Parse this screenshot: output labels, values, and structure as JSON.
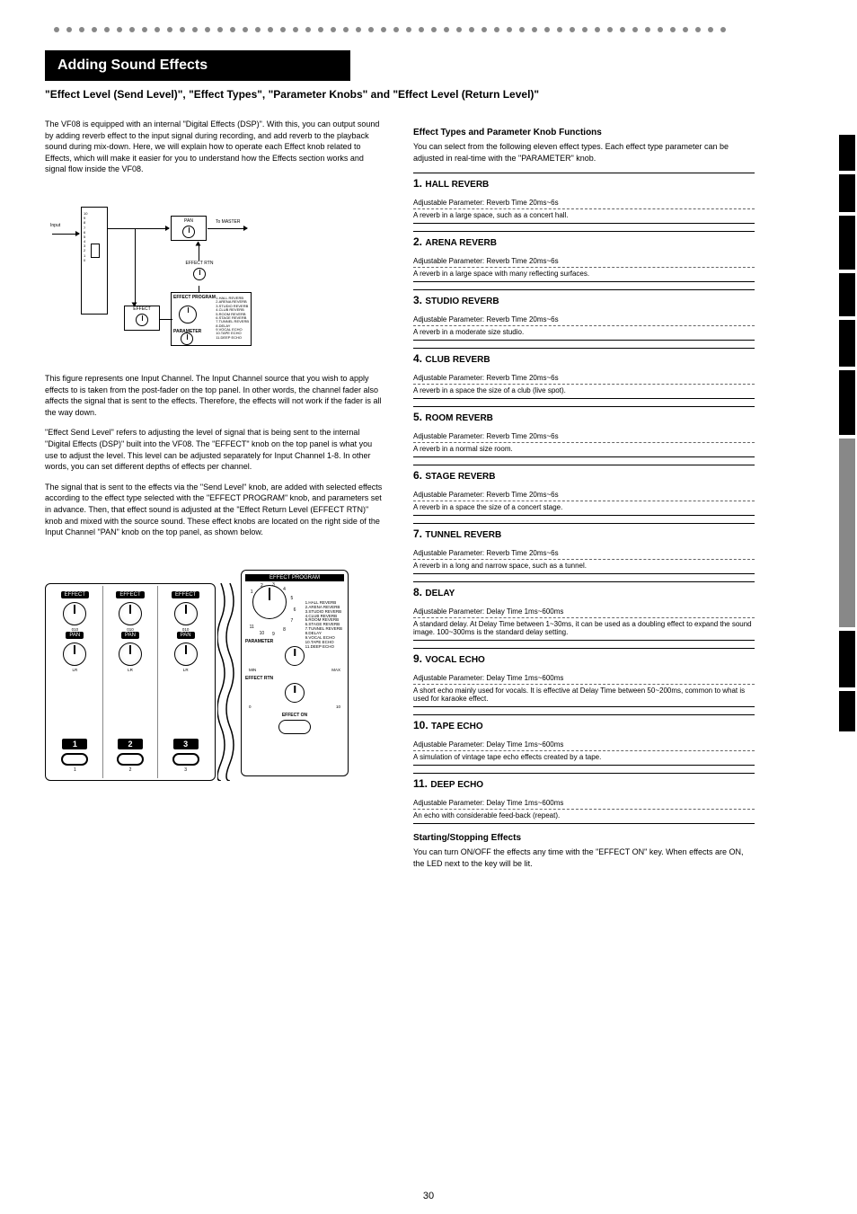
{
  "page_number": "30",
  "title": "Adding Sound Effects",
  "subtitle": "\"Effect Level (Send Level)\", \"Effect Types\", \"Parameter Knobs\" and \"Effect Level (Return Level)\"",
  "intro_para": "The VF08 is equipped with an internal \"Digital Effects (DSP)\". With this, you can output sound by adding reverb effect to the input signal during recording, and add reverb to the playback sound during mix-down. Here, we will explain how to operate each Effect knob related to Effects, which will make it easier for you to understand how the Effects section works and signal flow inside the VF08.",
  "diagram1": {
    "input_label": "Input",
    "pan_label": "PAN",
    "effect_label": "EFFECT",
    "effect_rtn_label": "EFFECT RTN",
    "effect_program_label": "EFFECT PROGRAM",
    "parameter_label": "PARAMETER",
    "master_label": "MASTER",
    "to_master_label": "To MASTER",
    "fader_marks": [
      "10",
      "9",
      "8",
      "7",
      "6",
      "5",
      "4",
      "3",
      "2",
      "1",
      "0"
    ],
    "effect_programs": [
      "HALL REVERB",
      "ARENA REVERB",
      "STUDIO REVERB",
      "CLUB REVERB",
      "ROOM REVERB",
      "STAGE REVERB",
      "TUNNEL REVERB",
      "DELAY",
      "VOCAL ECHO",
      "TAPE ECHO",
      "DEEP ECHO"
    ]
  },
  "left_text": {
    "p1": "This figure represents one Input Channel. The Input Channel source that you wish to apply effects to is taken from the post-fader on the top panel. In other words, the channel fader also affects the signal that is sent to the effects. Therefore, the effects will not work if the fader is all the way down.",
    "p2": "\"Effect Send Level\" refers to adjusting the level of signal that is being sent to the internal \"Digital Effects (DSP)\" built into the VF08. The \"EFFECT\" knob on the top panel is what you use to adjust the level. This level can be adjusted separately for Input Channel 1-8. In other words, you can set different depths of effects per channel.",
    "p3": "The signal that is sent to the effects via the \"Send Level\" knob, are added with selected effects according to the effect type selected with the \"EFFECT PROGRAM\" knob, and parameters set in advance. Then, that effect sound is adjusted at the \"Effect Return Level (EFFECT RTN)\" knob and mixed with the source sound. These effect knobs are located on the right side of the Input Channel \"PAN\" knob on the top panel, as shown below."
  },
  "right_text": {
    "head1": "Effect Types and Parameter Knob Functions",
    "lead": "You can select from the following eleven effect types. Each effect type parameter can be adjusted in real-time with the \"PARAMETER\" knob.",
    "effects": [
      {
        "num": "1.",
        "name": "HALL REVERB",
        "param": "Adjustable Parameter: Reverb Time 20ms~6s",
        "desc": "A reverb in a large space, such as a concert hall."
      },
      {
        "num": "2.",
        "name": "ARENA REVERB",
        "param": "Adjustable Parameter: Reverb Time 20ms~6s",
        "desc": "A reverb in a large space with many reflecting surfaces."
      },
      {
        "num": "3.",
        "name": "STUDIO REVERB",
        "param": "Adjustable Parameter: Reverb Time 20ms~6s",
        "desc": "A reverb in a moderate size studio."
      },
      {
        "num": "4.",
        "name": "CLUB REVERB",
        "param": "Adjustable Parameter: Reverb Time 20ms~6s",
        "desc": "A reverb in a space the size of a club (live spot)."
      },
      {
        "num": "5.",
        "name": "ROOM REVERB",
        "param": "Adjustable Parameter: Reverb Time 20ms~6s",
        "desc": "A reverb in a normal size room."
      },
      {
        "num": "6.",
        "name": "STAGE REVERB",
        "param": "Adjustable Parameter: Reverb Time 20ms~6s",
        "desc": "A reverb in a space the size of a concert stage."
      },
      {
        "num": "7.",
        "name": "TUNNEL REVERB",
        "param": "Adjustable Parameter: Reverb Time 20ms~6s",
        "desc": "A reverb in a long and narrow space, such as a tunnel."
      },
      {
        "num": "8.",
        "name": "DELAY",
        "param": "Adjustable Parameter: Delay Time 1ms~600ms",
        "desc": "A standard delay. At Delay Time between 1~30ms, it can be used as a doubling effect to expand the sound image. 100~300ms is the standard delay setting."
      },
      {
        "num": "9.",
        "name": "VOCAL ECHO",
        "param": "Adjustable Parameter: Delay Time 1ms~600ms",
        "desc": "A short echo mainly used for vocals. It is effective at Delay Time between 50~200ms, common to what is used for karaoke effect."
      },
      {
        "num": "10.",
        "name": "TAPE ECHO",
        "param": "Adjustable Parameter: Delay Time 1ms~600ms",
        "desc": "A simulation of vintage tape echo effects created by a tape."
      },
      {
        "num": "11.",
        "name": "DEEP ECHO",
        "param": "Adjustable Parameter: Delay Time 1ms~600ms",
        "desc": "An echo with considerable feed-back (repeat)."
      }
    ],
    "section2_head": "Starting/Stopping Effects",
    "section2_body": "You can turn ON/OFF the effects any time with the \"EFFECT ON\" key. When effects are ON, the LED next to the key will be lit."
  },
  "panel": {
    "effect_label": "EFFECT",
    "pan_label": "PAN",
    "channels": [
      "1",
      "2",
      "3"
    ],
    "effect_program_label": "EFFECT PROGRAM",
    "parameter_label": "PARAMETER",
    "effect_rtn_label": "EFFECT RTN",
    "effect_on_label": "EFFECT ON",
    "min": "MIN",
    "max": "MAX",
    "zero": "0",
    "ten": "10",
    "l": "L",
    "r": "R",
    "programs": [
      "1.HALL REVERB",
      "2.ARENA REVERB",
      "3.STUDIO REVERB",
      "4.CLUB REVERB",
      "5.ROOM REVERB",
      "6.STAGE REVERB",
      "7.TUNNEL REVERB",
      "8.DELAY",
      "9.VOCAL ECHO",
      "10.TAPE ECHO",
      "11.DEEP ECHO"
    ],
    "dial_marks": [
      "1",
      "2",
      "3",
      "4",
      "5",
      "6",
      "7",
      "8",
      "9",
      "10",
      "11"
    ]
  },
  "tabs_heights": [
    40,
    42,
    60,
    48,
    52,
    72,
    210,
    63,
    45
  ]
}
